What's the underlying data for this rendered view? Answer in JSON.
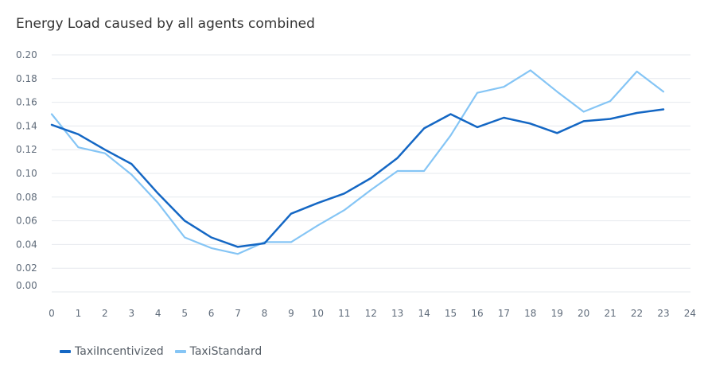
{
  "chart_data": {
    "type": "line",
    "title": "Energy Load caused by all agents combined",
    "x": [
      0,
      1,
      2,
      3,
      4,
      5,
      6,
      7,
      8,
      9,
      10,
      11,
      12,
      13,
      14,
      15,
      16,
      17,
      18,
      19,
      20,
      21,
      22,
      23
    ],
    "x_ticks": [
      "0",
      "1",
      "2",
      "3",
      "4",
      "5",
      "6",
      "7",
      "8",
      "9",
      "10",
      "11",
      "12",
      "13",
      "14",
      "15",
      "16",
      "17",
      "18",
      "19",
      "20",
      "21",
      "22",
      "23",
      "24"
    ],
    "xlim": [
      0,
      24
    ],
    "y_ticks": [
      "0.00",
      "0.02",
      "0.04",
      "0.06",
      "0.08",
      "0.10",
      "0.12",
      "0.14",
      "0.16",
      "0.18",
      "0.20"
    ],
    "ylim": [
      0,
      0.2
    ],
    "grid": true,
    "legend_position": "bottom-left",
    "series": [
      {
        "name": "TaxiIncentivized",
        "color": "#1467c4",
        "values": [
          0.141,
          0.133,
          0.12,
          0.108,
          0.083,
          0.06,
          0.046,
          0.038,
          0.041,
          0.066,
          0.075,
          0.083,
          0.096,
          0.113,
          0.138,
          0.15,
          0.139,
          0.147,
          0.142,
          0.134,
          0.144,
          0.146,
          0.151,
          0.154
        ]
      },
      {
        "name": "TaxiStandard",
        "color": "#85c5f5",
        "values": [
          0.15,
          0.122,
          0.117,
          0.099,
          0.075,
          0.046,
          0.037,
          0.032,
          0.042,
          0.042,
          0.056,
          0.069,
          0.086,
          0.102,
          0.102,
          0.132,
          0.168,
          0.173,
          0.187,
          0.169,
          0.152,
          0.161,
          0.186,
          0.169
        ]
      }
    ]
  }
}
